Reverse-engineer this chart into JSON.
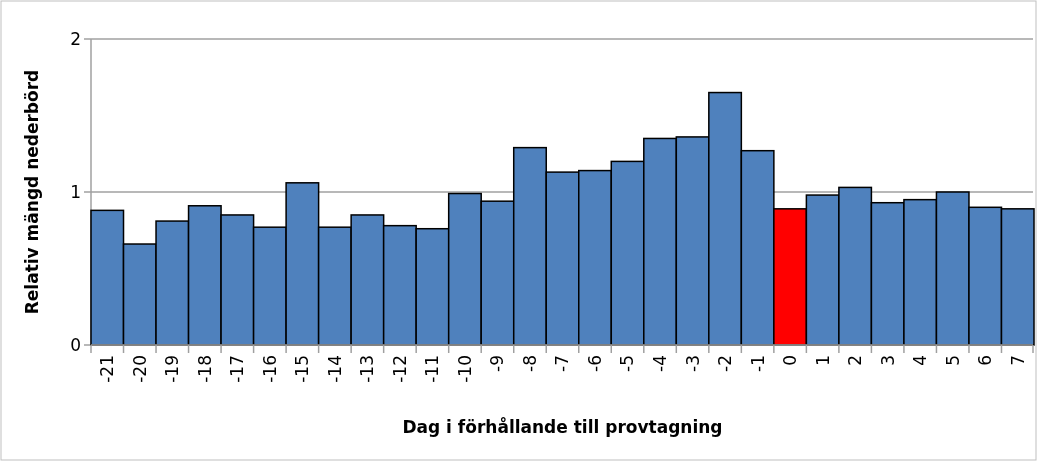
{
  "chart_data": {
    "type": "bar",
    "xlabel": "Dag i förhållande till provtagning",
    "ylabel": "Relativ mängd nederbörd",
    "categories": [
      "-21",
      "-20",
      "-19",
      "-18",
      "-17",
      "-16",
      "-15",
      "-14",
      "-13",
      "-12",
      "-11",
      "-10",
      "-9",
      "-8",
      "-7",
      "-6",
      "-5",
      "-4",
      "-3",
      "-2",
      "-1",
      "0",
      "1",
      "2",
      "3",
      "4",
      "5",
      "6",
      "7"
    ],
    "values": [
      0.88,
      0.66,
      0.81,
      0.91,
      0.85,
      0.77,
      1.06,
      0.77,
      0.85,
      0.78,
      0.76,
      0.99,
      0.94,
      1.29,
      1.13,
      1.14,
      1.2,
      1.35,
      1.36,
      1.65,
      1.27,
      0.89,
      0.98,
      1.03,
      0.93,
      0.95,
      1.0,
      0.9,
      0.89
    ],
    "colors": [
      "#4f81bd",
      "#4f81bd",
      "#4f81bd",
      "#4f81bd",
      "#4f81bd",
      "#4f81bd",
      "#4f81bd",
      "#4f81bd",
      "#4f81bd",
      "#4f81bd",
      "#4f81bd",
      "#4f81bd",
      "#4f81bd",
      "#4f81bd",
      "#4f81bd",
      "#4f81bd",
      "#4f81bd",
      "#4f81bd",
      "#4f81bd",
      "#4f81bd",
      "#4f81bd",
      "#ff0000",
      "#4f81bd",
      "#4f81bd",
      "#4f81bd",
      "#4f81bd",
      "#4f81bd",
      "#4f81bd",
      "#4f81bd"
    ],
    "ylim": [
      0,
      2
    ],
    "yticks": [
      0,
      1,
      2
    ],
    "grid": "y"
  }
}
